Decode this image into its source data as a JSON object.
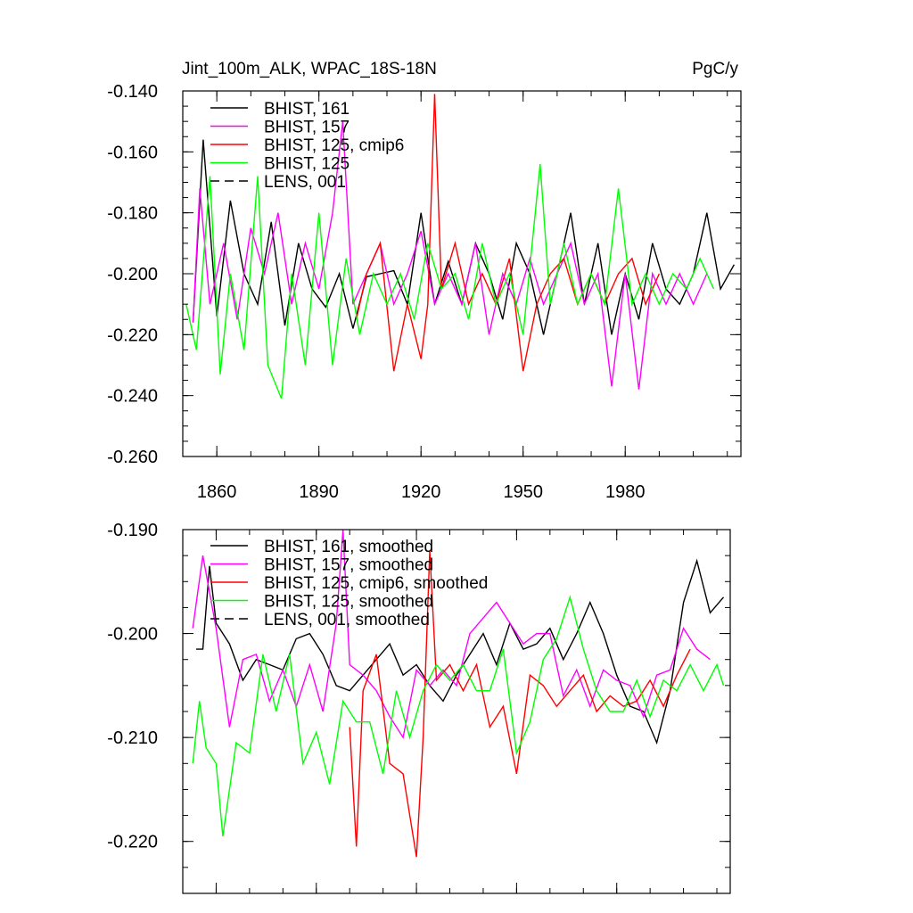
{
  "chart_data": [
    {
      "type": "line",
      "title": "Jint_100m_ALK, WPAC_18S-18N",
      "units": "PgC/y",
      "xlim": [
        1850,
        2014
      ],
      "ylim": [
        -0.26,
        -0.14
      ],
      "xticks": [
        1860,
        1890,
        1920,
        1950,
        1980
      ],
      "yticks": [
        -0.26,
        -0.24,
        -0.22,
        -0.2,
        -0.18,
        -0.16,
        -0.14
      ],
      "ytick_labels": [
        "-0.260",
        "-0.240",
        "-0.220",
        "-0.200",
        "-0.180",
        "-0.160",
        "-0.140"
      ],
      "legend": [
        {
          "label": "BHIST, 161",
          "color": "#000000",
          "dash": false
        },
        {
          "label": "BHIST, 157",
          "color": "#ff00ff",
          "dash": false
        },
        {
          "label": "BHIST, 125, cmip6",
          "color": "#ff0000",
          "dash": false
        },
        {
          "label": "BHIST, 125",
          "color": "#00ff00",
          "dash": false
        },
        {
          "label": "LENS, 001",
          "color": "#000000",
          "dash": true
        }
      ],
      "series": [
        {
          "name": "BHIST, 161",
          "color": "#000000",
          "x": [
            1853,
            1856,
            1860,
            1864,
            1868,
            1872,
            1876,
            1880,
            1884,
            1888,
            1892,
            1896,
            1900,
            1904,
            1908,
            1912,
            1916,
            1920,
            1924,
            1928,
            1932,
            1936,
            1940,
            1944,
            1948,
            1952,
            1956,
            1960,
            1964,
            1968,
            1972,
            1976,
            1980,
            1984,
            1988,
            1992,
            1996,
            2000,
            2004,
            2008,
            2012
          ],
          "values": [
            -0.216,
            -0.156,
            -0.214,
            -0.176,
            -0.2,
            -0.21,
            -0.183,
            -0.217,
            -0.19,
            -0.205,
            -0.211,
            -0.2,
            -0.218,
            -0.201,
            -0.2,
            -0.199,
            -0.21,
            -0.18,
            -0.21,
            -0.196,
            -0.21,
            -0.19,
            -0.2,
            -0.215,
            -0.19,
            -0.2,
            -0.22,
            -0.2,
            -0.18,
            -0.21,
            -0.19,
            -0.22,
            -0.2,
            -0.215,
            -0.19,
            -0.205,
            -0.21,
            -0.2,
            -0.18,
            -0.205,
            -0.197
          ]
        },
        {
          "name": "BHIST, 157",
          "color": "#ff00ff",
          "x": [
            1853,
            1855,
            1858,
            1862,
            1866,
            1870,
            1874,
            1878,
            1882,
            1886,
            1890,
            1894,
            1897,
            1900,
            1904,
            1908,
            1912,
            1916,
            1920,
            1924,
            1928,
            1932,
            1936,
            1940,
            1944,
            1948,
            1952,
            1956,
            1960,
            1964,
            1968,
            1972,
            1976,
            1980,
            1984,
            1988,
            1992,
            1996,
            2000,
            2004
          ],
          "values": [
            -0.216,
            -0.172,
            -0.21,
            -0.19,
            -0.215,
            -0.185,
            -0.2,
            -0.18,
            -0.21,
            -0.19,
            -0.205,
            -0.18,
            -0.15,
            -0.21,
            -0.2,
            -0.19,
            -0.21,
            -0.2,
            -0.186,
            -0.21,
            -0.2,
            -0.21,
            -0.19,
            -0.22,
            -0.2,
            -0.21,
            -0.195,
            -0.21,
            -0.2,
            -0.19,
            -0.21,
            -0.2,
            -0.237,
            -0.2,
            -0.238,
            -0.2,
            -0.21,
            -0.2,
            -0.21,
            -0.2
          ]
        },
        {
          "name": "BHIST, 125, cmip6",
          "color": "#ff0000",
          "x": [
            1901,
            1904,
            1908,
            1912,
            1916,
            1920,
            1922,
            1924,
            1926,
            1930,
            1934,
            1938,
            1942,
            1946,
            1950,
            1954,
            1958,
            1962,
            1966,
            1970,
            1974,
            1978,
            1982,
            1986,
            1990
          ],
          "values": [
            -0.215,
            -0.2,
            -0.19,
            -0.232,
            -0.21,
            -0.228,
            -0.21,
            -0.141,
            -0.205,
            -0.19,
            -0.21,
            -0.2,
            -0.21,
            -0.195,
            -0.232,
            -0.21,
            -0.2,
            -0.195,
            -0.21,
            -0.2,
            -0.21,
            -0.2,
            -0.195,
            -0.21,
            -0.2
          ]
        },
        {
          "name": "BHIST, 125",
          "color": "#00ff00",
          "x": [
            1851,
            1854,
            1858,
            1861,
            1864,
            1868,
            1872,
            1875,
            1879,
            1882,
            1886,
            1890,
            1894,
            1898,
            1902,
            1906,
            1910,
            1914,
            1918,
            1922,
            1926,
            1930,
            1934,
            1938,
            1942,
            1946,
            1950,
            1955,
            1958,
            1962,
            1966,
            1970,
            1974,
            1978,
            1982,
            1986,
            1990,
            1994,
            1998,
            2002,
            2006
          ],
          "values": [
            -0.21,
            -0.225,
            -0.168,
            -0.233,
            -0.2,
            -0.225,
            -0.168,
            -0.23,
            -0.241,
            -0.2,
            -0.23,
            -0.18,
            -0.23,
            -0.195,
            -0.22,
            -0.2,
            -0.21,
            -0.2,
            -0.215,
            -0.19,
            -0.205,
            -0.2,
            -0.215,
            -0.19,
            -0.21,
            -0.2,
            -0.22,
            -0.164,
            -0.21,
            -0.19,
            -0.21,
            -0.2,
            -0.21,
            -0.172,
            -0.21,
            -0.2,
            -0.21,
            -0.2,
            -0.205,
            -0.195,
            -0.205
          ]
        }
      ]
    },
    {
      "type": "line",
      "title": "",
      "xlim": [
        1850,
        2014
      ],
      "ylim": [
        -0.225,
        -0.19
      ],
      "xticks": [
        1860,
        1890,
        1920,
        1950,
        1980
      ],
      "yticks": [
        -0.22,
        -0.21,
        -0.2,
        -0.19
      ],
      "ytick_labels": [
        "-0.220",
        "-0.210",
        "-0.200",
        "-0.190"
      ],
      "legend": [
        {
          "label": "BHIST, 161, smoothed",
          "color": "#000000",
          "dash": false
        },
        {
          "label": "BHIST, 157, smoothed",
          "color": "#ff00ff",
          "dash": false
        },
        {
          "label": "BHIST, 125, cmip6, smoothed",
          "color": "#ff0000",
          "dash": false
        },
        {
          "label": "BHIST, 125, smoothed",
          "color": "#00ff00",
          "dash": false
        },
        {
          "label": "LENS, 001, smoothed",
          "color": "#000000",
          "dash": true
        }
      ],
      "series": [
        {
          "name": "BHIST, 161, smoothed",
          "color": "#000000",
          "x": [
            1854,
            1856,
            1858,
            1860,
            1864,
            1868,
            1872,
            1876,
            1880,
            1884,
            1888,
            1892,
            1896,
            1900,
            1904,
            1908,
            1912,
            1916,
            1920,
            1924,
            1928,
            1932,
            1936,
            1940,
            1944,
            1948,
            1952,
            1956,
            1960,
            1964,
            1968,
            1972,
            1976,
            1980,
            1984,
            1988,
            1992,
            1996,
            2000,
            2004,
            2008,
            2012
          ],
          "values": [
            -0.2015,
            -0.2015,
            -0.1935,
            -0.199,
            -0.201,
            -0.2045,
            -0.2025,
            -0.203,
            -0.2035,
            -0.2005,
            -0.2,
            -0.202,
            -0.205,
            -0.2055,
            -0.204,
            -0.2025,
            -0.201,
            -0.204,
            -0.203,
            -0.205,
            -0.2065,
            -0.204,
            -0.202,
            -0.2,
            -0.203,
            -0.199,
            -0.2015,
            -0.201,
            -0.1995,
            -0.2025,
            -0.2,
            -0.197,
            -0.2,
            -0.204,
            -0.207,
            -0.2075,
            -0.2105,
            -0.2055,
            -0.197,
            -0.193,
            -0.198,
            -0.1965
          ]
        },
        {
          "name": "BHIST, 157, smoothed",
          "color": "#ff00ff",
          "x": [
            1853,
            1856,
            1860,
            1864,
            1868,
            1872,
            1876,
            1880,
            1884,
            1888,
            1892,
            1896,
            1898,
            1900,
            1904,
            1908,
            1912,
            1916,
            1920,
            1924,
            1928,
            1932,
            1936,
            1940,
            1944,
            1948,
            1952,
            1956,
            1960,
            1964,
            1968,
            1972,
            1976,
            1980,
            1984,
            1988,
            1992,
            1996,
            2000,
            2004,
            2008
          ],
          "values": [
            -0.1995,
            -0.1925,
            -0.1995,
            -0.209,
            -0.2025,
            -0.202,
            -0.2065,
            -0.2035,
            -0.207,
            -0.203,
            -0.2075,
            -0.199,
            -0.19,
            -0.203,
            -0.204,
            -0.2055,
            -0.208,
            -0.21,
            -0.2035,
            -0.205,
            -0.2035,
            -0.205,
            -0.2,
            -0.1985,
            -0.197,
            -0.199,
            -0.201,
            -0.2,
            -0.2,
            -0.206,
            -0.2035,
            -0.207,
            -0.2035,
            -0.2045,
            -0.205,
            -0.208,
            -0.204,
            -0.2035,
            -0.1995,
            -0.2015,
            -0.2025
          ]
        },
        {
          "name": "BHIST, 125, cmip6, smoothed",
          "color": "#ff0000",
          "x": [
            1900,
            1902,
            1904,
            1908,
            1912,
            1916,
            1920,
            1922,
            1924,
            1926,
            1930,
            1934,
            1938,
            1942,
            1946,
            1950,
            1954,
            1958,
            1962,
            1966,
            1970,
            1974,
            1978,
            1982,
            1986,
            1990,
            1994,
            1998,
            2002
          ],
          "values": [
            -0.209,
            -0.2205,
            -0.2055,
            -0.202,
            -0.2125,
            -0.2135,
            -0.2215,
            -0.21,
            -0.192,
            -0.2045,
            -0.203,
            -0.2055,
            -0.203,
            -0.209,
            -0.207,
            -0.2135,
            -0.204,
            -0.205,
            -0.207,
            -0.2055,
            -0.204,
            -0.2075,
            -0.206,
            -0.207,
            -0.2065,
            -0.2045,
            -0.207,
            -0.204,
            -0.2015
          ]
        },
        {
          "name": "BHIST, 125, smoothed",
          "color": "#00ff00",
          "x": [
            1853,
            1855,
            1857,
            1860,
            1862,
            1866,
            1870,
            1874,
            1878,
            1882,
            1886,
            1890,
            1894,
            1898,
            1902,
            1906,
            1910,
            1914,
            1918,
            1922,
            1926,
            1930,
            1934,
            1938,
            1942,
            1946,
            1950,
            1954,
            1958,
            1962,
            1966,
            1970,
            1974,
            1978,
            1982,
            1986,
            1990,
            1994,
            1998,
            2002,
            2006,
            2010,
            2012
          ],
          "values": [
            -0.2125,
            -0.2065,
            -0.211,
            -0.2125,
            -0.2195,
            -0.2105,
            -0.2115,
            -0.202,
            -0.2075,
            -0.202,
            -0.2125,
            -0.2095,
            -0.2145,
            -0.2065,
            -0.2085,
            -0.2085,
            -0.2135,
            -0.2055,
            -0.21,
            -0.2055,
            -0.203,
            -0.2045,
            -0.203,
            -0.2055,
            -0.2055,
            -0.2015,
            -0.2115,
            -0.2085,
            -0.2025,
            -0.2005,
            -0.1965,
            -0.2015,
            -0.2055,
            -0.2075,
            -0.2075,
            -0.2045,
            -0.208,
            -0.2045,
            -0.2055,
            -0.203,
            -0.2055,
            -0.203,
            -0.205
          ]
        }
      ]
    }
  ]
}
